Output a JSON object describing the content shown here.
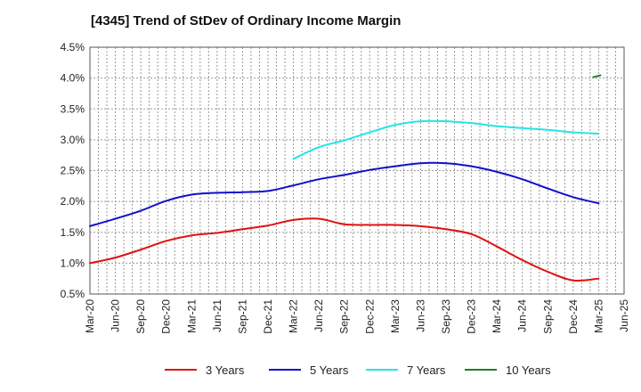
{
  "chart_data": {
    "type": "line",
    "title": "[4345]  Trend of StDev of Ordinary Income Margin",
    "xlabel": "",
    "ylabel": "",
    "categories": [
      "Mar-20",
      "Jun-20",
      "Sep-20",
      "Dec-20",
      "Mar-21",
      "Jun-21",
      "Sep-21",
      "Dec-21",
      "Mar-22",
      "Jun-22",
      "Sep-22",
      "Dec-22",
      "Mar-23",
      "Jun-23",
      "Sep-23",
      "Dec-23",
      "Mar-24",
      "Jun-24",
      "Sep-24",
      "Dec-24",
      "Mar-25",
      "Jun-25"
    ],
    "ylim": [
      0.5,
      4.5
    ],
    "yticks": [
      "0.5%",
      "1.0%",
      "1.5%",
      "2.0%",
      "2.5%",
      "3.0%",
      "3.5%",
      "4.0%",
      "4.5%"
    ],
    "y_unit": "%",
    "grid": true,
    "legend_position": "bottom",
    "series": [
      {
        "name": "3 Years",
        "color": "#e01010",
        "values": [
          1.0,
          1.09,
          1.22,
          1.36,
          1.45,
          1.49,
          1.55,
          1.61,
          1.7,
          1.72,
          1.63,
          1.62,
          1.62,
          1.6,
          1.55,
          1.47,
          1.27,
          1.05,
          0.86,
          0.72,
          0.75,
          null
        ]
      },
      {
        "name": "5 Years",
        "color": "#1010cc",
        "values": [
          1.6,
          1.72,
          1.85,
          2.01,
          2.11,
          2.14,
          2.15,
          2.17,
          2.26,
          2.36,
          2.43,
          2.51,
          2.57,
          2.62,
          2.62,
          2.57,
          2.48,
          2.36,
          2.21,
          2.07,
          1.97,
          null
        ]
      },
      {
        "name": "7 Years",
        "color": "#22e5e5",
        "values": [
          null,
          null,
          null,
          null,
          null,
          null,
          null,
          null,
          2.69,
          2.88,
          2.99,
          3.12,
          3.24,
          3.3,
          3.3,
          3.27,
          3.22,
          3.19,
          3.16,
          3.12,
          3.1,
          null
        ]
      },
      {
        "name": "10 Years",
        "color": "#1f7f1f",
        "values": [
          null,
          null,
          null,
          null,
          null,
          null,
          null,
          null,
          null,
          null,
          null,
          null,
          null,
          null,
          null,
          null,
          null,
          null,
          null,
          null,
          4.03,
          null
        ]
      }
    ]
  }
}
